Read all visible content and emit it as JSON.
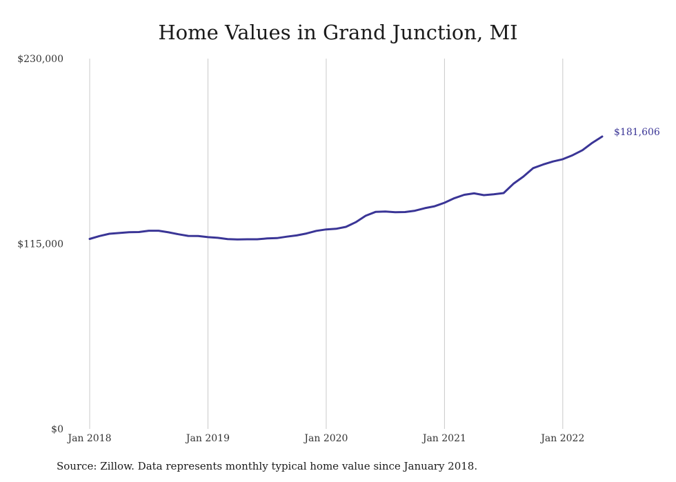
{
  "chart_data": {
    "type": "line",
    "title": "Home Values in Grand Junction, MI",
    "xlabel": "",
    "ylabel": "",
    "ylim": [
      0,
      230000
    ],
    "y_ticks": [
      {
        "value": 0,
        "label": "$0"
      },
      {
        "value": 115000,
        "label": "$115,000"
      },
      {
        "value": 230000,
        "label": "$230,000"
      }
    ],
    "x_ticks": [
      {
        "date": "2018-01",
        "label": "Jan 2018"
      },
      {
        "date": "2019-01",
        "label": "Jan 2019"
      },
      {
        "date": "2020-01",
        "label": "Jan 2020"
      },
      {
        "date": "2021-01",
        "label": "Jan 2021"
      },
      {
        "date": "2022-01",
        "label": "Jan 2022"
      }
    ],
    "x_range": [
      "2018-01",
      "2022-05"
    ],
    "grid": {
      "vertical": true,
      "horizontal": false
    },
    "line_color": "#3a3596",
    "series": [
      {
        "x": [
          "2018-01",
          "2018-02",
          "2018-03",
          "2018-04",
          "2018-05",
          "2018-06",
          "2018-07",
          "2018-08",
          "2018-09",
          "2018-10",
          "2018-11",
          "2018-12",
          "2019-01",
          "2019-02",
          "2019-03",
          "2019-04",
          "2019-05",
          "2019-06",
          "2019-07",
          "2019-08",
          "2019-09",
          "2019-10",
          "2019-11",
          "2019-12",
          "2020-01",
          "2020-02",
          "2020-03",
          "2020-04",
          "2020-05",
          "2020-06",
          "2020-07",
          "2020-08",
          "2020-09",
          "2020-10",
          "2020-11",
          "2020-12",
          "2021-01",
          "2021-02",
          "2021-03",
          "2021-04",
          "2021-05",
          "2021-06",
          "2021-07",
          "2021-08",
          "2021-09",
          "2021-10",
          "2021-11",
          "2021-12",
          "2022-01",
          "2022-02",
          "2022-03",
          "2022-04",
          "2022-05"
        ],
        "values": [
          118000,
          119800,
          121200,
          121700,
          122200,
          122300,
          123100,
          123100,
          122100,
          120900,
          119900,
          119800,
          119100,
          118700,
          117900,
          117700,
          117800,
          117800,
          118300,
          118500,
          119400,
          120200,
          121400,
          123000,
          123900,
          124300,
          125500,
          128400,
          132400,
          134800,
          135000,
          134600,
          134700,
          135500,
          137100,
          138300,
          140500,
          143300,
          145400,
          146300,
          145200,
          145700,
          146500,
          152300,
          156700,
          162000,
          164200,
          166100,
          167500,
          170000,
          173100,
          177700,
          181606
        ]
      }
    ],
    "end_label": "$181,606"
  },
  "source_note": "Source: Zillow. Data represents monthly typical home value since January 2018."
}
